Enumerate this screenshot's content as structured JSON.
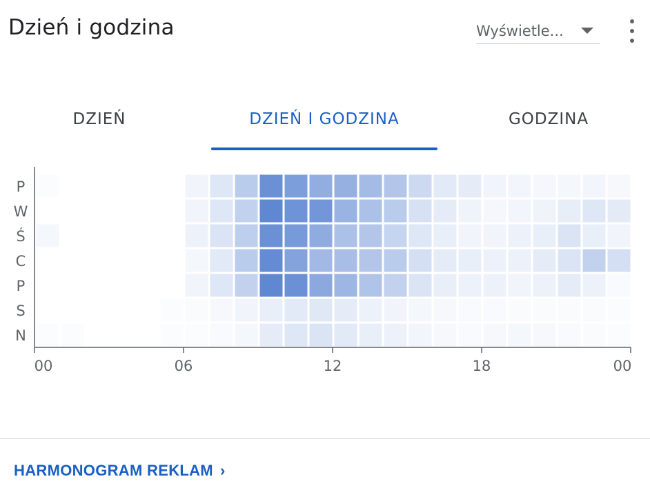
{
  "header": {
    "title": "Dzień i godzina",
    "dropdown_value": "Wyświetle...",
    "more_icon": "more-vert-icon"
  },
  "tabs": [
    {
      "label": "DZIEŃ",
      "active": false
    },
    {
      "label": "DZIEŃ I GODZINA",
      "active": true
    },
    {
      "label": "GODZINA",
      "active": false
    }
  ],
  "footer": {
    "link_label": "HARMONOGRAM REKLAM",
    "chevron_icon": "chevron-right-icon"
  },
  "colors": {
    "accent": "#1a5fc4",
    "heat_base": "#4a78cc"
  },
  "chart_data": {
    "type": "heatmap",
    "y_categories": [
      "P",
      "W",
      "Ś",
      "C",
      "P",
      "S",
      "N"
    ],
    "x_ticks": [
      "00",
      "06",
      "12",
      "18",
      "00"
    ],
    "hours": 24,
    "values": [
      [
        0.02,
        0,
        0,
        0,
        0,
        0,
        0.08,
        0.18,
        0.38,
        0.82,
        0.72,
        0.6,
        0.58,
        0.5,
        0.42,
        0.28,
        0.16,
        0.14,
        0.08,
        0.07,
        0.06,
        0.06,
        0.07,
        0.05
      ],
      [
        0,
        0,
        0,
        0,
        0,
        0,
        0.08,
        0.18,
        0.34,
        0.88,
        0.8,
        0.78,
        0.56,
        0.46,
        0.38,
        0.22,
        0.14,
        0.09,
        0.06,
        0.07,
        0.09,
        0.13,
        0.18,
        0.15
      ],
      [
        0.06,
        0,
        0,
        0,
        0,
        0,
        0.1,
        0.2,
        0.36,
        0.82,
        0.75,
        0.62,
        0.46,
        0.42,
        0.32,
        0.18,
        0.12,
        0.08,
        0.08,
        0.1,
        0.12,
        0.2,
        0.12,
        0.08
      ],
      [
        0,
        0,
        0,
        0,
        0,
        0,
        0.06,
        0.16,
        0.38,
        0.86,
        0.68,
        0.52,
        0.48,
        0.42,
        0.38,
        0.24,
        0.14,
        0.12,
        0.1,
        0.1,
        0.14,
        0.2,
        0.34,
        0.24
      ],
      [
        0,
        0,
        0,
        0,
        0,
        0,
        0.08,
        0.18,
        0.34,
        0.88,
        0.82,
        0.64,
        0.54,
        0.44,
        0.34,
        0.2,
        0.12,
        0.1,
        0.1,
        0.08,
        0.1,
        0.14,
        0.1,
        0.04
      ],
      [
        0,
        0,
        0,
        0,
        0,
        0.02,
        0.03,
        0.05,
        0.08,
        0.12,
        0.16,
        0.17,
        0.14,
        0.1,
        0.08,
        0.06,
        0.05,
        0.04,
        0.04,
        0.03,
        0.03,
        0.03,
        0.03,
        0.02
      ],
      [
        0.02,
        0.02,
        0,
        0,
        0,
        0.02,
        0.02,
        0.04,
        0.06,
        0.14,
        0.18,
        0.2,
        0.16,
        0.12,
        0.1,
        0.07,
        0.05,
        0.04,
        0.05,
        0.06,
        0.05,
        0.04,
        0.03,
        0.02
      ]
    ]
  }
}
